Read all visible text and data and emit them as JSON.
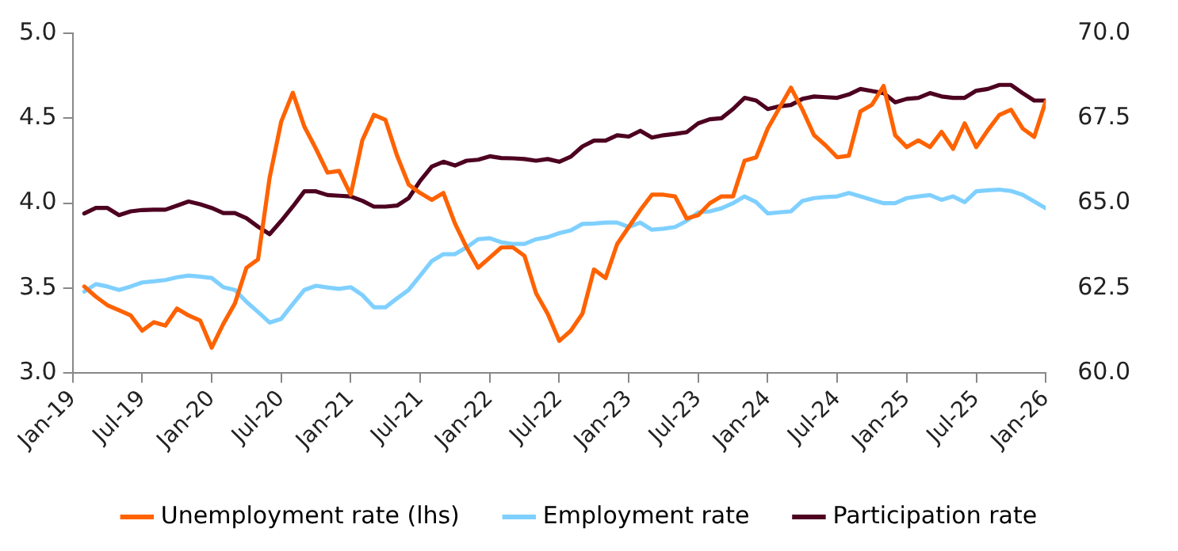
{
  "chart_data": {
    "type": "line",
    "x": [
      "2019-02",
      "2019-03",
      "2019-04",
      "2019-05",
      "2019-06",
      "2019-07",
      "2019-08",
      "2019-09",
      "2019-10",
      "2019-11",
      "2019-12",
      "2020-01",
      "2020-02",
      "2020-03",
      "2020-04",
      "2020-05",
      "2020-06",
      "2020-07",
      "2020-08",
      "2020-09",
      "2020-10",
      "2020-11",
      "2020-12",
      "2021-01",
      "2021-02",
      "2021-03",
      "2021-04",
      "2021-05",
      "2021-06",
      "2021-07",
      "2021-08",
      "2021-09",
      "2021-10",
      "2021-11",
      "2021-12",
      "2022-01",
      "2022-02",
      "2022-03",
      "2022-04",
      "2022-05",
      "2022-06",
      "2022-07",
      "2022-08",
      "2022-09",
      "2022-10",
      "2022-11",
      "2022-12",
      "2023-01",
      "2023-02",
      "2023-03",
      "2023-04",
      "2023-05",
      "2023-06",
      "2023-07",
      "2023-08",
      "2023-09",
      "2023-10",
      "2023-11",
      "2023-12",
      "2024-01",
      "2024-02",
      "2024-03",
      "2024-04",
      "2024-05",
      "2024-06",
      "2024-07",
      "2024-08",
      "2024-09",
      "2024-10",
      "2024-11",
      "2024-12",
      "2025-01",
      "2025-02",
      "2025-03",
      "2025-04",
      "2025-05",
      "2025-06",
      "2025-07",
      "2025-08",
      "2025-09",
      "2025-10",
      "2025-11",
      "2025-12",
      "2026-01"
    ],
    "series": [
      {
        "name": "Unemployment rate (lhs)",
        "color": "#ff6200",
        "values": [
          3.51,
          3.45,
          3.4,
          3.37,
          3.34,
          3.25,
          3.3,
          3.28,
          3.38,
          3.34,
          3.31,
          3.15,
          3.29,
          3.41,
          3.62,
          3.67,
          4.15,
          4.48,
          4.65,
          4.45,
          4.32,
          4.18,
          4.19,
          4.05,
          4.37,
          4.52,
          4.49,
          4.28,
          4.11,
          4.06,
          4.02,
          4.06,
          3.88,
          3.74,
          3.62,
          3.68,
          3.74,
          3.74,
          3.69,
          3.47,
          3.35,
          3.19,
          3.25,
          3.35,
          3.61,
          3.56,
          3.76,
          3.86,
          3.96,
          4.05,
          4.05,
          4.04,
          3.91,
          3.93,
          4.0,
          4.04,
          4.04,
          4.25,
          4.27,
          4.44,
          4.56,
          4.68,
          4.55,
          4.4,
          4.34,
          4.27,
          4.28,
          4.54,
          4.58,
          4.69,
          4.4,
          4.33,
          4.37,
          4.33,
          4.42,
          4.32,
          4.47,
          4.33,
          4.43,
          4.52,
          4.55,
          4.44,
          4.39,
          4.6
        ]
      },
      {
        "name": "Employment rate",
        "color": "#7fd0ff",
        "axis": "y2",
        "values": [
          62.4,
          62.62,
          62.55,
          62.45,
          62.55,
          62.67,
          62.7,
          62.74,
          62.82,
          62.87,
          62.84,
          62.8,
          62.53,
          62.45,
          62.1,
          61.8,
          61.49,
          61.6,
          62.03,
          62.45,
          62.57,
          62.52,
          62.48,
          62.53,
          62.3,
          61.94,
          61.94,
          62.2,
          62.45,
          62.87,
          63.3,
          63.5,
          63.5,
          63.7,
          63.94,
          63.97,
          63.85,
          63.8,
          63.8,
          63.94,
          64.0,
          64.12,
          64.2,
          64.39,
          64.4,
          64.43,
          64.43,
          64.3,
          64.43,
          64.22,
          64.25,
          64.3,
          64.48,
          64.73,
          64.76,
          64.85,
          65.0,
          65.2,
          65.03,
          64.7,
          64.73,
          64.76,
          65.07,
          65.15,
          65.18,
          65.2,
          65.3,
          65.2,
          65.1,
          65.0,
          65.0,
          65.15,
          65.2,
          65.24,
          65.1,
          65.2,
          65.03,
          65.35,
          65.38,
          65.4,
          65.36,
          65.25,
          65.05,
          64.85
        ]
      },
      {
        "name": "Participation rate",
        "color": "#4d0020",
        "axis": "y2",
        "values": [
          64.7,
          64.86,
          64.86,
          64.65,
          64.76,
          64.8,
          64.81,
          64.81,
          64.93,
          65.05,
          64.97,
          64.86,
          64.71,
          64.71,
          64.56,
          64.31,
          64.09,
          64.48,
          64.9,
          65.35,
          65.35,
          65.24,
          65.22,
          65.2,
          65.07,
          64.9,
          64.9,
          64.93,
          65.15,
          65.66,
          66.08,
          66.22,
          66.11,
          66.25,
          66.28,
          66.38,
          66.33,
          66.32,
          66.3,
          66.25,
          66.3,
          66.22,
          66.37,
          66.67,
          66.84,
          66.84,
          67.0,
          66.96,
          67.13,
          66.93,
          67.0,
          67.04,
          67.09,
          67.35,
          67.47,
          67.5,
          67.77,
          68.1,
          68.02,
          67.77,
          67.85,
          67.89,
          68.07,
          68.14,
          68.12,
          68.1,
          68.2,
          68.36,
          68.3,
          68.24,
          67.97,
          68.07,
          68.1,
          68.24,
          68.14,
          68.1,
          68.1,
          68.31,
          68.36,
          68.48,
          68.48,
          68.24,
          68.02,
          68.02
        ]
      }
    ],
    "xlim": [
      "2019-01",
      "2026-01"
    ],
    "xticks": [
      {
        "value": "2019-01",
        "label": "Jan-19"
      },
      {
        "value": "2019-07",
        "label": "Jul-19"
      },
      {
        "value": "2020-01",
        "label": "Jan-20"
      },
      {
        "value": "2020-07",
        "label": "Jul-20"
      },
      {
        "value": "2021-01",
        "label": "Jan-21"
      },
      {
        "value": "2021-07",
        "label": "Jul-21"
      },
      {
        "value": "2022-01",
        "label": "Jan-22"
      },
      {
        "value": "2022-07",
        "label": "Jul-22"
      },
      {
        "value": "2023-01",
        "label": "Jan-23"
      },
      {
        "value": "2023-07",
        "label": "Jul-23"
      },
      {
        "value": "2024-01",
        "label": "Jan-24"
      },
      {
        "value": "2024-07",
        "label": "Jul-24"
      },
      {
        "value": "2025-01",
        "label": "Jan-25"
      },
      {
        "value": "2025-07",
        "label": "Jul-25"
      },
      {
        "value": "2026-01",
        "label": "Jan-26"
      }
    ],
    "ylim": [
      3,
      5
    ],
    "yticks": [
      {
        "value": 3,
        "label": "3.0"
      },
      {
        "value": 3.5,
        "label": "3.5"
      },
      {
        "value": 4,
        "label": "4.0"
      },
      {
        "value": 4.5,
        "label": "4.5"
      },
      {
        "value": 5,
        "label": "5.0"
      }
    ],
    "y2lim": [
      60,
      70
    ],
    "y2ticks": [
      {
        "value": 60,
        "label": "60.0"
      },
      {
        "value": 62.5,
        "label": "62.5"
      },
      {
        "value": 65,
        "label": "65.0"
      },
      {
        "value": 67.5,
        "label": "67.5"
      },
      {
        "value": 70,
        "label": "70.0"
      }
    ],
    "grid": false,
    "legend": "bottom",
    "marker": "none",
    "line_style": "solid"
  }
}
